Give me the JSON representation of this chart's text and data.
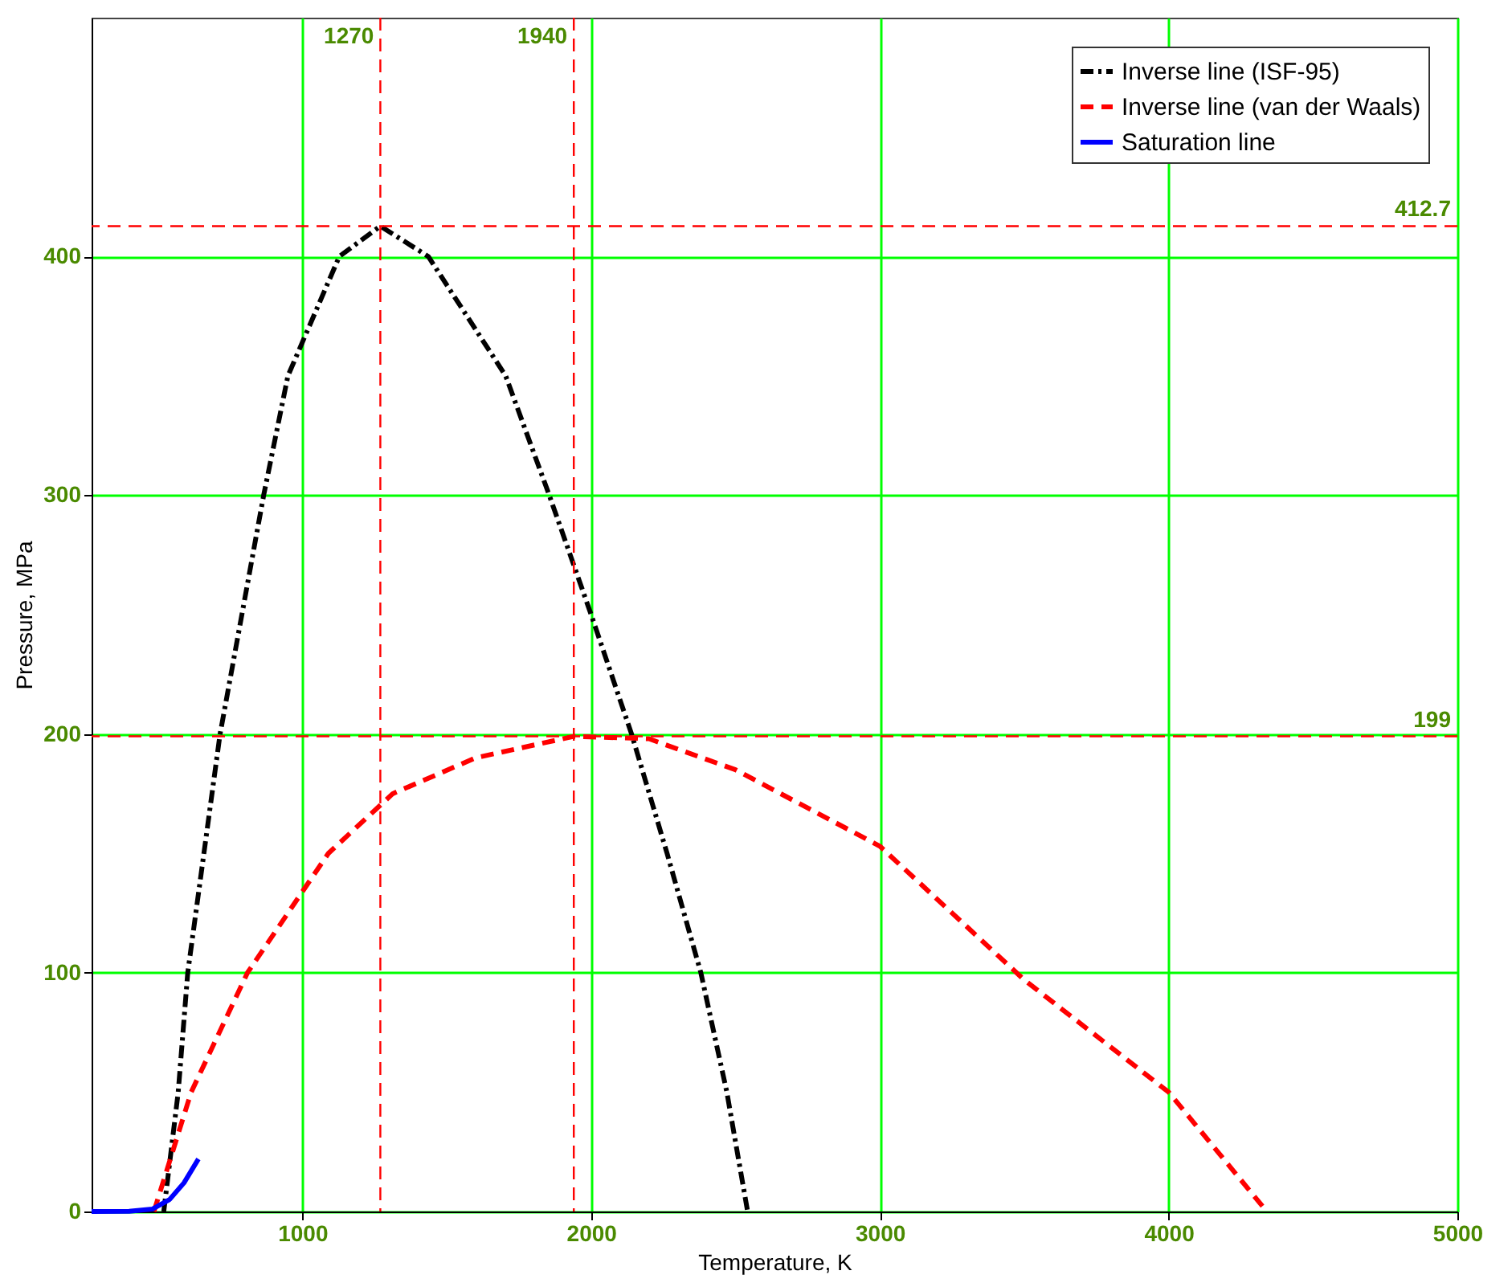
{
  "chart_data": {
    "type": "line",
    "xlabel": "Temperature, K",
    "ylabel": "Pressure, MPa",
    "xlim": [
      270,
      5000
    ],
    "ylim": [
      0,
      500
    ],
    "xticks": [
      1000,
      2000,
      3000,
      4000,
      5000
    ],
    "yticks": [
      0,
      100,
      200,
      300,
      400
    ],
    "grid": true,
    "legend": "top right",
    "series": [
      {
        "name": "Inverse line (ISF-95)",
        "color": "#000000",
        "line_style": "dashdot",
        "x": [
          520,
          570,
          603,
          715,
          866,
          950,
          1128,
          1270,
          1436,
          1704,
          1855,
          2000,
          2140,
          2263,
          2380,
          2470,
          2542
        ],
        "values": [
          0,
          50,
          100,
          200,
          300,
          350,
          400,
          412.7,
          400,
          350,
          300,
          250,
          200,
          150,
          100,
          50,
          0
        ]
      },
      {
        "name": "Inverse line (van der Waals)",
        "color": "#ff0000",
        "line_style": "dashed",
        "x": [
          486,
          615,
          810,
          1090,
          1313,
          1600,
          1940,
          2200,
          2500,
          3000,
          3500,
          4000,
          4340
        ],
        "values": [
          0,
          50,
          100,
          150,
          175,
          190,
          199,
          198,
          185,
          153,
          97,
          50,
          0
        ]
      },
      {
        "name": "Saturation line",
        "color": "#0000ff",
        "line_style": "solid",
        "x": [
          270,
          400,
          480,
          540,
          590,
          640
        ],
        "values": [
          0,
          0.1,
          1,
          5,
          12,
          22
        ]
      }
    ],
    "ref_lines": [
      {
        "axis": "x",
        "value": 1270,
        "label": "1270",
        "color": "#ff0000",
        "line_style": "dashed"
      },
      {
        "axis": "x",
        "value": 1940,
        "label": "1940",
        "color": "#ff0000",
        "line_style": "dashed"
      },
      {
        "axis": "y",
        "value": 412.7,
        "label": "412.7",
        "color": "#ff0000",
        "line_style": "dashed"
      },
      {
        "axis": "y",
        "value": 199,
        "label": "199",
        "color": "#ff0000",
        "line_style": "dashed"
      }
    ]
  }
}
